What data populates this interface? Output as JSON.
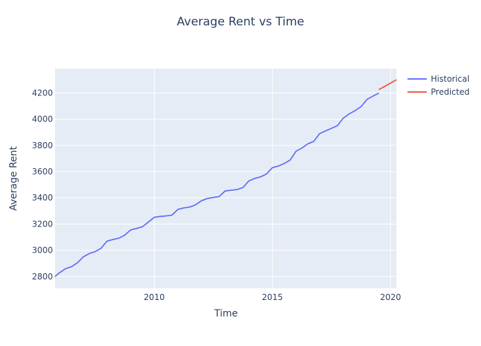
{
  "chart_data": {
    "type": "line",
    "title": "Average Rent vs Time",
    "xlabel": "Time",
    "ylabel": "Average Rent",
    "xlim": [
      2005.8,
      2020.25
    ],
    "ylim": [
      2710,
      4385
    ],
    "x_ticks": [
      2010,
      2015,
      2020
    ],
    "y_ticks": [
      2800,
      3000,
      3200,
      3400,
      3600,
      3800,
      4000,
      4200
    ],
    "grid": true,
    "legend_position": "top-right",
    "series": [
      {
        "name": "Historical",
        "color": "#636efa",
        "x": [
          2005.8,
          2006.0,
          2006.25,
          2006.5,
          2006.75,
          2007.0,
          2007.25,
          2007.5,
          2007.75,
          2008.0,
          2008.25,
          2008.5,
          2008.75,
          2009.0,
          2009.25,
          2009.5,
          2009.75,
          2010.0,
          2010.25,
          2010.5,
          2010.75,
          2011.0,
          2011.25,
          2011.5,
          2011.75,
          2012.0,
          2012.25,
          2012.5,
          2012.75,
          2013.0,
          2013.25,
          2013.5,
          2013.75,
          2014.0,
          2014.25,
          2014.5,
          2014.75,
          2015.0,
          2015.25,
          2015.5,
          2015.75,
          2016.0,
          2016.25,
          2016.5,
          2016.75,
          2017.0,
          2017.25,
          2017.5,
          2017.75,
          2018.0,
          2018.25,
          2018.5,
          2018.75,
          2019.0,
          2019.25,
          2019.5
        ],
        "y": [
          2800,
          2830,
          2860,
          2875,
          2905,
          2950,
          2975,
          2990,
          3015,
          3070,
          3082,
          3092,
          3115,
          3155,
          3167,
          3180,
          3215,
          3252,
          3258,
          3262,
          3268,
          3312,
          3323,
          3330,
          3347,
          3378,
          3395,
          3403,
          3410,
          3452,
          3458,
          3463,
          3478,
          3528,
          3548,
          3560,
          3582,
          3630,
          3642,
          3662,
          3688,
          3755,
          3780,
          3812,
          3830,
          3890,
          3910,
          3930,
          3950,
          4008,
          4040,
          4065,
          4095,
          4150,
          4175,
          4198
        ]
      },
      {
        "name": "Predicted",
        "color": "#ef553b",
        "x": [
          2019.5,
          2020.25
        ],
        "y": [
          4225,
          4300
        ]
      }
    ]
  }
}
